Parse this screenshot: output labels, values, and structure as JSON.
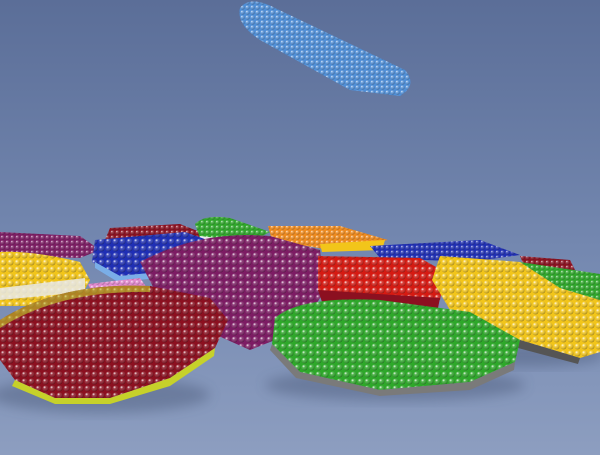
{
  "scene": {
    "subject": "atomic-flakes",
    "colors": {
      "backdrop_top": "#5b6e98",
      "backdrop_mid": "#7488b0",
      "floor": "#8d9ec0",
      "blue_flake": "#4f8fd8",
      "purple_flake": "#7d1c64",
      "navy_flake": "#1f2fb5",
      "red_flake": "#d61a12",
      "green_flake": "#2ea82a",
      "yellow_flake": "#f2c51a",
      "orange_flake": "#f08a1c",
      "maroon_flake": "#8c1020",
      "grey_atoms": "#7a7a7a",
      "white_atoms": "#e9e9e9"
    }
  }
}
